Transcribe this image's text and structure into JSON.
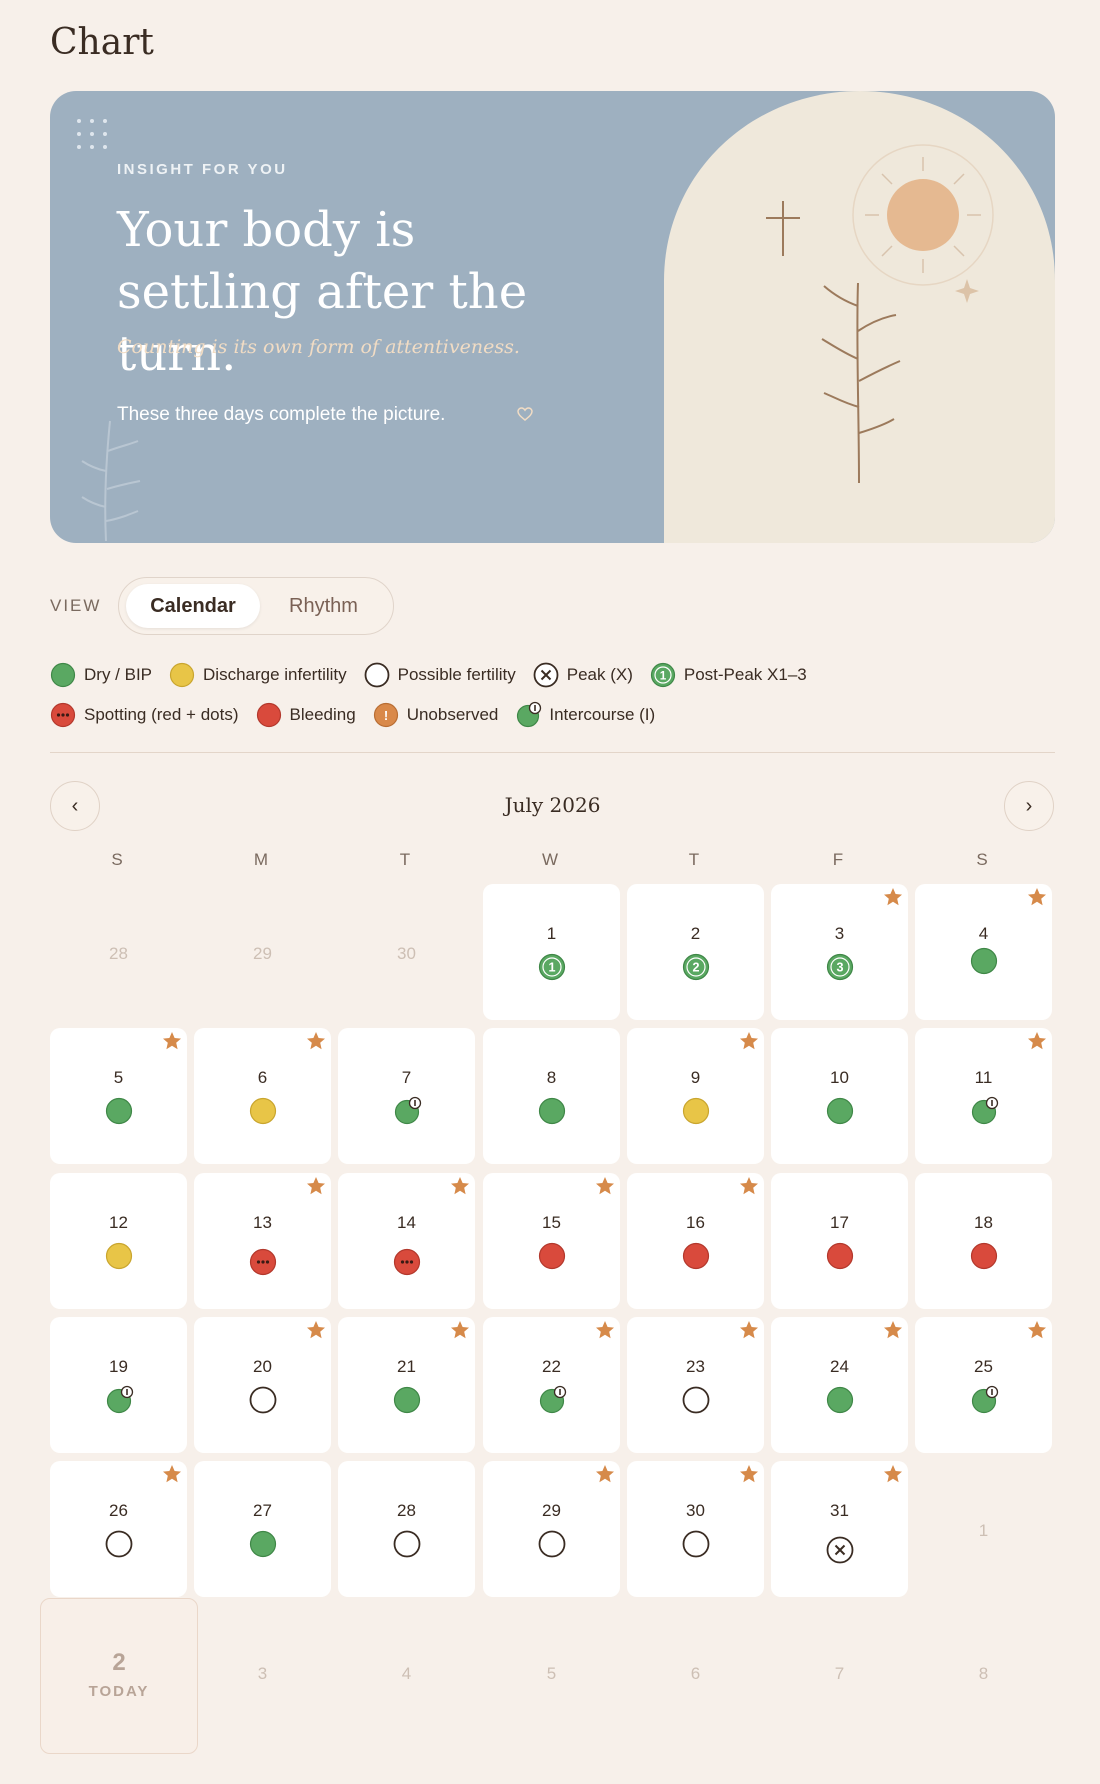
{
  "page": {
    "title": "Chart"
  },
  "hero": {
    "eyebrow": "INSIGHT FOR YOU",
    "heading": "Your body is settling after the turn.",
    "quote": "Counting is its own form of attentiveness.",
    "body": "These three days complete the picture.",
    "heart_icon": "heart-outline-icon"
  },
  "view": {
    "label": "VIEW",
    "options": [
      "Calendar",
      "Rhythm"
    ],
    "selected": "Calendar"
  },
  "legend": [
    [
      {
        "key": "dry",
        "label": "Dry / BIP"
      },
      {
        "key": "discharge",
        "label": "Discharge infertility"
      },
      {
        "key": "possible",
        "label": "Possible fertility"
      },
      {
        "key": "peak",
        "label": "Peak (X)"
      },
      {
        "key": "postpeak",
        "label": "Post-Peak X1–3",
        "badge": "1"
      }
    ],
    [
      {
        "key": "spotting",
        "label": "Spotting (red + dots)"
      },
      {
        "key": "bleeding",
        "label": "Bleeding"
      },
      {
        "key": "unobserved",
        "label": "Unobserved"
      },
      {
        "key": "intercourse",
        "label": "Intercourse (I)"
      }
    ]
  ],
  "colors": {
    "dry": "#5aa862",
    "discharge": "#e8c547",
    "bleeding": "#d94a3c",
    "unobserved": "#d9894a",
    "star": "#d68a4a",
    "hero_bg": "#9eb0c0",
    "page_bg": "#f7f0ea"
  },
  "calendar": {
    "month": "July 2026",
    "prev_icon": "chevron-left-icon",
    "next_icon": "chevron-right-icon",
    "prev_label": "‹",
    "next_label": "›",
    "weekdays": [
      "S",
      "M",
      "T",
      "W",
      "T",
      "F",
      "S"
    ],
    "days": [
      {
        "n": "28",
        "faded": true
      },
      {
        "n": "29",
        "faded": true
      },
      {
        "n": "30",
        "faded": true
      },
      {
        "n": "1",
        "type": "postpeak",
        "badge": "1"
      },
      {
        "n": "2",
        "type": "postpeak",
        "badge": "2"
      },
      {
        "n": "3",
        "type": "postpeak",
        "badge": "3",
        "star": true
      },
      {
        "n": "4",
        "type": "dry",
        "star": true,
        "pos": "alt"
      },
      {
        "n": "5",
        "type": "dry",
        "star": true
      },
      {
        "n": "6",
        "type": "discharge",
        "star": true
      },
      {
        "n": "7",
        "type": "intercourse",
        "star": false
      },
      {
        "n": "8",
        "type": "dry"
      },
      {
        "n": "9",
        "type": "discharge",
        "star": true
      },
      {
        "n": "10",
        "type": "dry"
      },
      {
        "n": "11",
        "type": "intercourse",
        "star": true
      },
      {
        "n": "12",
        "type": "discharge"
      },
      {
        "n": "13",
        "type": "spotting",
        "star": true,
        "pos": "low"
      },
      {
        "n": "14",
        "type": "spotting",
        "star": true,
        "pos": "low"
      },
      {
        "n": "15",
        "type": "bleeding",
        "star": true
      },
      {
        "n": "16",
        "type": "bleeding",
        "star": true
      },
      {
        "n": "17",
        "type": "bleeding"
      },
      {
        "n": "18",
        "type": "bleeding"
      },
      {
        "n": "19",
        "type": "intercourse"
      },
      {
        "n": "20",
        "type": "possible",
        "star": true
      },
      {
        "n": "21",
        "type": "dry",
        "star": true
      },
      {
        "n": "22",
        "type": "intercourse",
        "star": true
      },
      {
        "n": "23",
        "type": "possible",
        "star": true
      },
      {
        "n": "24",
        "type": "dry",
        "star": true
      },
      {
        "n": "25",
        "type": "intercourse",
        "star": true
      },
      {
        "n": "26",
        "type": "possible",
        "star": true
      },
      {
        "n": "27",
        "type": "dry"
      },
      {
        "n": "28",
        "type": "possible"
      },
      {
        "n": "29",
        "type": "possible",
        "star": true
      },
      {
        "n": "30",
        "type": "possible",
        "star": true
      },
      {
        "n": "31",
        "type": "peak",
        "star": true,
        "pos": "low"
      },
      {
        "n": "1",
        "faded": true
      },
      {
        "n": "2",
        "today": true
      },
      {
        "n": "3",
        "faded": true
      },
      {
        "n": "4",
        "faded": true
      },
      {
        "n": "5",
        "faded": true
      },
      {
        "n": "6",
        "faded": true
      },
      {
        "n": "7",
        "faded": true
      },
      {
        "n": "8",
        "faded": true
      }
    ],
    "today_label": "TODAY"
  }
}
